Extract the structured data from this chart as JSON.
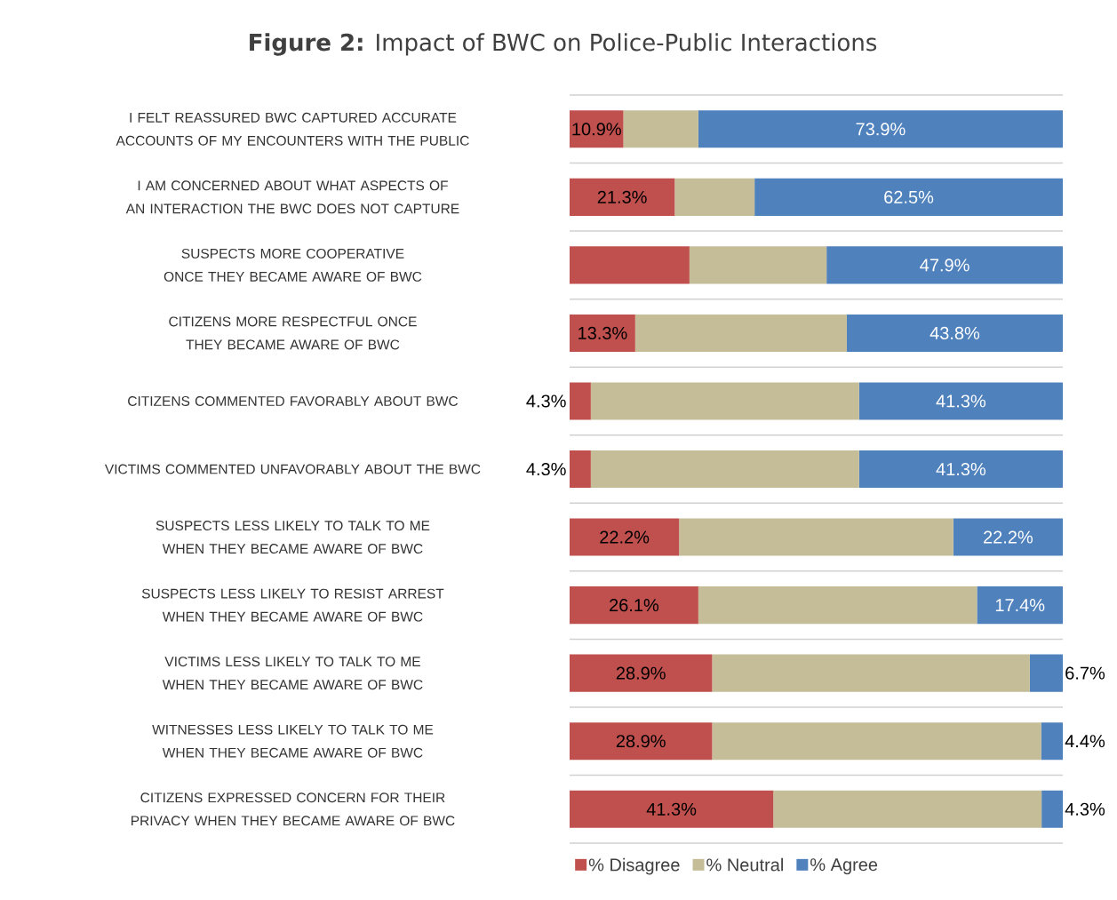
{
  "chart_data": {
    "type": "bar",
    "orientation": "horizontal",
    "stacked": true,
    "title": "**Figure 2:** Impact of BWC on Police-Public Interactions",
    "categories": [
      "I FELT REASSURED BWC CAPTURED ACCURATE ACCOUNTS OF MY ENCOUNTERS WITH THE PUBLIC",
      "I AM CONCERNED ABOUT WHAT ASPECTS OF AN INTERACTION THE BWC DOES NOT CAPTURE",
      "SUSPECTS MORE COOPERATIVE ONCE THEY BECAME AWARE OF BWC",
      "CITIZENS MORE RESPECTFUL ONCE THEY BECAME AWARE OF BWC",
      "CITIZENS COMMENTED FAVORABLY ABOUT BWC",
      "VICTIMS COMMENTED UNFAVORABLY ABOUT THE BWC",
      "SUSPECTS LESS LIKELY TO TALK TO ME WHEN THEY BECAME AWARE OF BWC",
      "SUSPECTS LESS LIKELY TO RESIST ARREST WHEN THEY BECAME AWARE OF BWC",
      "VICTIMS LESS LIKELY TO TALK TO ME WHEN THEY BECAME AWARE OF BWC",
      "WITNESSES LESS LIKELY TO TALK TO ME WHEN THEY BECAME AWARE OF BWC",
      "CITIZENS EXPRESSED CONCERN FOR THEIR PRIVACY WHEN THEY BECAME AWARE OF BWC"
    ],
    "series": [
      {
        "name": "% Disagree",
        "color": "#c0504d",
        "values": [
          10.9,
          21.3,
          24.3,
          13.3,
          4.3,
          4.3,
          22.2,
          26.1,
          28.9,
          28.9,
          41.3
        ],
        "value_labels": [
          "10.9%",
          "21.3%",
          null,
          "13.3%",
          "4.3%",
          "4.3%",
          "22.2%",
          "26.1%",
          "28.9%",
          "28.9%",
          "41.3%"
        ]
      },
      {
        "name": "% Neutral",
        "color": "#c4bd97",
        "values": [
          15.2,
          16.2,
          27.8,
          42.9,
          54.4,
          54.4,
          55.6,
          56.5,
          64.4,
          66.7,
          54.4
        ]
      },
      {
        "name": "% Agree",
        "color": "#4f81bd",
        "values": [
          73.9,
          62.5,
          47.9,
          43.8,
          41.3,
          41.3,
          22.2,
          17.4,
          6.7,
          4.4,
          4.3
        ],
        "value_labels": [
          "73.9%",
          "62.5%",
          "47.9%",
          "43.8%",
          "41.3%",
          "41.3%",
          "22.2%",
          "17.4%",
          "6.7%",
          "4.4%",
          "4.3%"
        ]
      }
    ],
    "xlim": [
      0,
      100
    ],
    "tick_labels": "y",
    "grid": "y",
    "legend": "bottom"
  }
}
